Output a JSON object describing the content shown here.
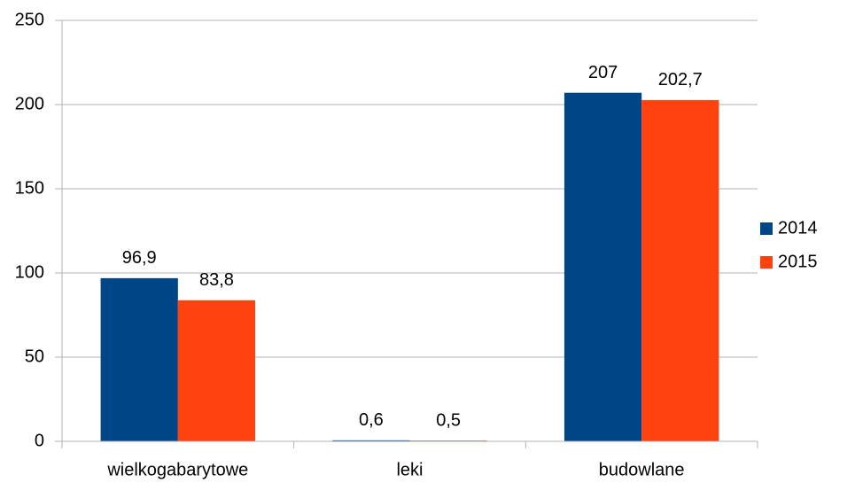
{
  "chart_data": {
    "type": "bar",
    "categories": [
      "wielkogabarytowe",
      "leki",
      "budowlane"
    ],
    "series": [
      {
        "name": "2014",
        "color": "#004586",
        "values": [
          96.9,
          0.6,
          207
        ],
        "value_labels": [
          "96,9",
          "0,6",
          "207"
        ]
      },
      {
        "name": "2015",
        "color": "#ff420e",
        "values": [
          83.8,
          0.5,
          202.7
        ],
        "value_labels": [
          "83,8",
          "0,5",
          "202,7"
        ]
      }
    ],
    "ylim": [
      0,
      250
    ],
    "yticks": [
      0,
      50,
      100,
      150,
      200,
      250
    ],
    "grid": true,
    "legend": "right"
  }
}
